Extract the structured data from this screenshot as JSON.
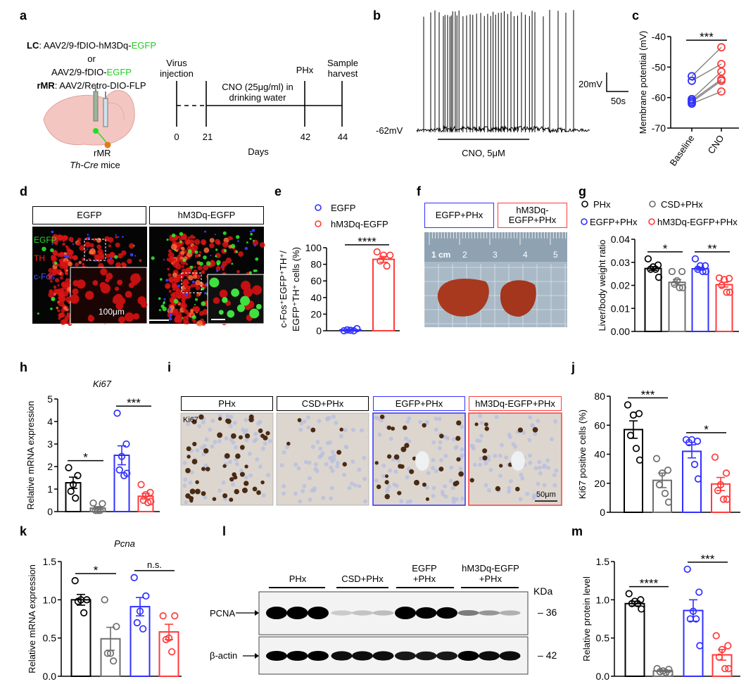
{
  "panel_labels": {
    "a": "a",
    "b": "b",
    "c": "c",
    "d": "d",
    "e": "e",
    "f": "f",
    "g": "g",
    "h": "h",
    "i": "i",
    "j": "j",
    "k": "k",
    "l": "l",
    "m": "m"
  },
  "colors": {
    "phx": "#000000",
    "csd": "#6e6e6e",
    "egfp": "#3030ff",
    "hm3dq": "#ff3b3b",
    "egfp_text": "#22cc22"
  },
  "a": {
    "lc_prefix": "LC",
    "lc_vector": ": AAV2/9-fDIO-hM3Dq-",
    "lc_egfp": "EGFP",
    "or": "or",
    "alt_vector": "AAV2/9-fDIO-",
    "alt_egfp": "EGFP",
    "rmr_prefix": "rMR",
    "rmr_vector": ": AAV2/Retro-DIO-FLP",
    "brain_lc": "LC",
    "brain_rmr": "rMR",
    "mouse_italic": "Th-Cre",
    "mouse_rest": " mice",
    "timeline": {
      "virus": "Virus\ninjection",
      "cno": "CNO (25μg/ml) in\ndrinking water",
      "phx": "PHx",
      "harvest": "Sample\nharvest",
      "days": [
        "0",
        "21",
        "42",
        "44"
      ],
      "axis_label": "Days"
    }
  },
  "b": {
    "vm_label": "-62mV",
    "drug_label": "CNO, 5μM",
    "scale_v": "20mV",
    "scale_t": "50s"
  },
  "d": {
    "headers": [
      "EGFP",
      "hM3Dq-EGFP"
    ],
    "channels": [
      {
        "label": "EGFP",
        "color": "#22dd22"
      },
      {
        "label": "TH",
        "color": "#ff2020"
      },
      {
        "label": "c-Fos",
        "color": "#3838ff"
      }
    ],
    "scale_bar": "100μm"
  },
  "f": {
    "headers": [
      "EGFP+PHx",
      "hM3Dq-\nEGFP+PHx"
    ],
    "ruler_unit": "1 cm",
    "ruler_numbers": [
      "2",
      "3",
      "4",
      "5"
    ]
  },
  "i": {
    "headers": [
      "PHx",
      "CSD+PHx",
      "EGFP+PHx",
      "hM3Dq-EGFP+PHx"
    ],
    "stain": "Ki67",
    "scale_bar": "50μm"
  },
  "l": {
    "groups": [
      "PHx",
      "CSD+PHx",
      "EGFP\n+PHx",
      "hM3Dq-EGFP\n+PHx"
    ],
    "unit": "KDa",
    "rows": [
      {
        "label": "PCNA",
        "kda": "36"
      },
      {
        "label": "β-actin",
        "kda": "42"
      }
    ]
  },
  "chart_data": [
    {
      "id": "c",
      "type": "scatter",
      "ylabel": "Membrane potential (mV)",
      "ylim": [
        -70,
        -40
      ],
      "yticks": [
        -40,
        -50,
        -60,
        -70
      ],
      "categories": [
        "Baseline",
        "CNO"
      ],
      "paired": true,
      "series": [
        {
          "category": "Baseline",
          "color": "#3030ff",
          "values": [
            -53,
            -54.5,
            -60.5,
            -61,
            -61.5,
            -62
          ]
        },
        {
          "category": "CNO",
          "color": "#ff3b3b",
          "values": [
            -43.5,
            -49,
            -51.5,
            -54,
            -54.5,
            -58
          ]
        }
      ],
      "significance": [
        {
          "groups": [
            0,
            1
          ],
          "label": "***"
        }
      ]
    },
    {
      "id": "e",
      "type": "bar",
      "ylabel": [
        "c-Fos⁺EGFP⁺TH⁺/",
        "EGFP⁺TH⁺ cells (%)"
      ],
      "ylim": [
        0,
        100
      ],
      "yticks": [
        0,
        20,
        40,
        60,
        80,
        100
      ],
      "legend": {
        "placement": "top",
        "entries": [
          {
            "label": "EGFP",
            "color": "#3030ff"
          },
          {
            "label": "hM3Dq-EGFP",
            "color": "#ff3b3b"
          }
        ]
      },
      "groups": [
        {
          "name": "EGFP",
          "color": "#3030ff",
          "mean": 1,
          "sem": 0.5,
          "points": [
            0,
            2.5,
            0.5,
            1,
            0
          ]
        },
        {
          "name": "hM3Dq-EGFP",
          "color": "#ff3b3b",
          "mean": 86,
          "sem": 3.5,
          "points": [
            95,
            91,
            91,
            84,
            78
          ]
        }
      ],
      "significance": [
        {
          "groups": [
            0,
            1
          ],
          "label": "****"
        }
      ]
    },
    {
      "id": "g",
      "type": "bar",
      "ylabel": "Liver/body weight ratio",
      "ylim": [
        0,
        0.04
      ],
      "yticks": [
        0,
        0.01,
        0.02,
        0.03,
        0.04
      ],
      "tick_decimals": 2,
      "legend": {
        "placement": "top",
        "entries": [
          {
            "label": "PHx",
            "color": "#000000"
          },
          {
            "label": "CSD+PHx",
            "color": "#6e6e6e"
          },
          {
            "label": "EGFP+PHx",
            "color": "#3030ff"
          },
          {
            "label": "hM3Dq-EGFP+PHx",
            "color": "#ff3b3b"
          }
        ]
      },
      "groups": [
        {
          "name": "PHx",
          "color": "#000000",
          "mean": 0.0273,
          "sem": 0.0008,
          "points": [
            0.0315,
            0.0288,
            0.028,
            0.027,
            0.027,
            0.0235
          ]
        },
        {
          "name": "CSD+PHx",
          "color": "#6e6e6e",
          "mean": 0.0213,
          "sem": 0.0012,
          "points": [
            0.026,
            0.026,
            0.022,
            0.0205,
            0.019,
            0.019
          ]
        },
        {
          "name": "EGFP+PHx",
          "color": "#3030ff",
          "mean": 0.0272,
          "sem": 0.0006,
          "points": [
            0.0315,
            0.0285,
            0.0285,
            0.027,
            0.026,
            0.026
          ]
        },
        {
          "name": "hM3Dq-EGFP+PHx",
          "color": "#ff3b3b",
          "mean": 0.0203,
          "sem": 0.001,
          "points": [
            0.0232,
            0.023,
            0.0225,
            0.02,
            0.017,
            0.017
          ]
        }
      ],
      "significance": [
        {
          "groups": [
            0,
            1
          ],
          "label": "*"
        },
        {
          "groups": [
            2,
            3
          ],
          "label": "**"
        }
      ]
    },
    {
      "id": "h",
      "type": "bar",
      "title": "Ki67",
      "ylabel": "Relative mRNA expression",
      "ylim": [
        0,
        5
      ],
      "yticks": [
        0,
        1,
        2,
        3,
        4,
        5
      ],
      "groups": [
        {
          "name": "PHx",
          "color": "#000000",
          "mean": 1.28,
          "sem": 0.25,
          "points": [
            1.95,
            1.6,
            1.2,
            0.9,
            0.6
          ]
        },
        {
          "name": "CSD+PHx",
          "color": "#6e6e6e",
          "mean": 0.15,
          "sem": 0.07,
          "points": [
            0.38,
            0.35,
            0.05,
            0.05,
            0.05
          ]
        },
        {
          "name": "EGFP+PHx",
          "color": "#3030ff",
          "mean": 2.5,
          "sem": 0.42,
          "points": [
            4.37,
            3.0,
            2.45,
            1.85,
            1.6,
            1.7
          ]
        },
        {
          "name": "hM3Dq-EGFP+PHx",
          "color": "#ff3b3b",
          "mean": 0.68,
          "sem": 0.12,
          "points": [
            1.2,
            0.85,
            0.75,
            0.5,
            0.4,
            0.45
          ]
        }
      ],
      "significance": [
        {
          "groups": [
            0,
            1
          ],
          "label": "*"
        },
        {
          "groups": [
            2,
            3
          ],
          "label": "***"
        }
      ]
    },
    {
      "id": "j",
      "type": "bar",
      "ylabel": "Ki67 positive cells (%)",
      "ylim": [
        0,
        80
      ],
      "yticks": [
        0,
        20,
        40,
        60,
        80
      ],
      "groups": [
        {
          "name": "PHx",
          "color": "#000000",
          "mean": 57,
          "sem": 6,
          "points": [
            74,
            68,
            67,
            53,
            44,
            36
          ]
        },
        {
          "name": "CSD+PHx",
          "color": "#6e6e6e",
          "mean": 22,
          "sem": 5,
          "points": [
            37,
            29,
            27,
            19,
            13,
            7
          ]
        },
        {
          "name": "EGFP+PHx",
          "color": "#3030ff",
          "mean": 42,
          "sem": 4.5,
          "points": [
            50,
            49,
            50,
            48,
            33,
            23
          ]
        },
        {
          "name": "hM3Dq-EGFP+PHx",
          "color": "#ff3b3b",
          "mean": 19.5,
          "sem": 4.5,
          "points": [
            38,
            27,
            19,
            15,
            9,
            9
          ]
        }
      ],
      "significance": [
        {
          "groups": [
            0,
            1
          ],
          "label": "***"
        },
        {
          "groups": [
            2,
            3
          ],
          "label": "*"
        }
      ]
    },
    {
      "id": "k",
      "type": "bar",
      "title": "Pcna",
      "ylabel": "Relative mRNA expression",
      "ylim": [
        0,
        1.5
      ],
      "yticks": [
        0,
        0.5,
        1.0,
        1.5
      ],
      "tick_decimals": 1,
      "groups": [
        {
          "name": "PHx",
          "color": "#000000",
          "mean": 1.0,
          "sem": 0.07,
          "points": [
            1.25,
            1.0,
            1.0,
            0.98,
            0.83
          ]
        },
        {
          "name": "CSD+PHx",
          "color": "#6e6e6e",
          "mean": 0.49,
          "sem": 0.15,
          "points": [
            1.0,
            0.65,
            0.3,
            0.3,
            0.2
          ]
        },
        {
          "name": "EGFP+PHx",
          "color": "#3030ff",
          "mean": 0.91,
          "sem": 0.12,
          "points": [
            1.29,
            1.05,
            0.85,
            0.7,
            0.62
          ]
        },
        {
          "name": "hM3Dq-EGFP+PHx",
          "color": "#ff3b3b",
          "mean": 0.58,
          "sem": 0.1,
          "points": [
            0.79,
            0.79,
            0.5,
            0.48,
            0.32
          ]
        }
      ],
      "significance": [
        {
          "groups": [
            0,
            1
          ],
          "label": "*"
        },
        {
          "groups": [
            2,
            3
          ],
          "label": "n.s."
        }
      ]
    },
    {
      "id": "m",
      "type": "bar",
      "ylabel": "Relative protein level",
      "ylim": [
        0,
        1.5
      ],
      "yticks": [
        0,
        0.5,
        1.0,
        1.5
      ],
      "tick_decimals": 1,
      "groups": [
        {
          "name": "PHx",
          "color": "#000000",
          "mean": 0.95,
          "sem": 0.03,
          "points": [
            1.08,
            1.0,
            0.98,
            0.95,
            0.95,
            0.88
          ]
        },
        {
          "name": "CSD+PHx",
          "color": "#6e6e6e",
          "mean": 0.07,
          "sem": 0.01,
          "points": [
            0.1,
            0.09,
            0.07,
            0.06,
            0.05,
            0.04
          ]
        },
        {
          "name": "EGFP+PHx",
          "color": "#3030ff",
          "mean": 0.86,
          "sem": 0.14,
          "points": [
            1.4,
            1.1,
            0.85,
            0.75,
            0.75,
            0.4
          ]
        },
        {
          "name": "hM3Dq-EGFP+PHx",
          "color": "#ff3b3b",
          "mean": 0.28,
          "sem": 0.07,
          "points": [
            0.53,
            0.4,
            0.35,
            0.25,
            0.1,
            0.1
          ]
        }
      ],
      "significance": [
        {
          "groups": [
            0,
            1
          ],
          "label": "****"
        },
        {
          "groups": [
            2,
            3
          ],
          "label": "***"
        }
      ]
    }
  ]
}
